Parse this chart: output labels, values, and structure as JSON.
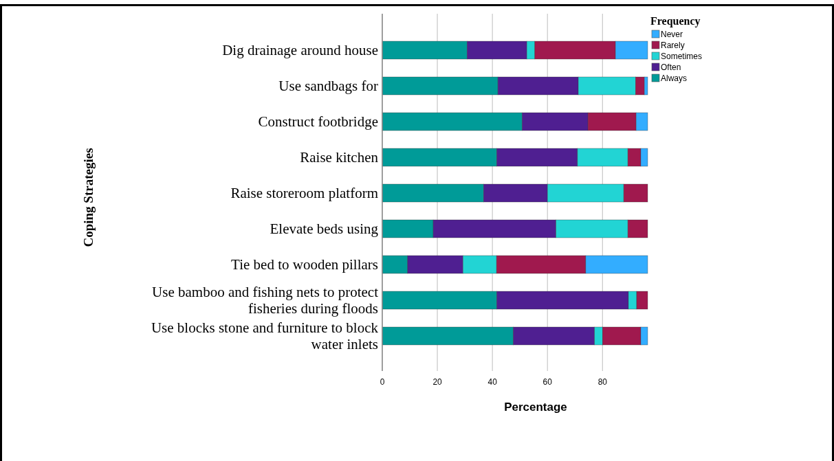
{
  "chart_data": {
    "type": "bar",
    "orientation": "horizontal",
    "stacked": true,
    "xlabel": "Percentage",
    "ylabel": "Coping Strategies",
    "legend_title": "Frequency",
    "categories": [
      "Dig drainage around house",
      "Use sandbags for",
      "Construct footbridge",
      "Raise kitchen",
      "Raise storeroom platform",
      "Elevate beds using",
      "Tie bed to wooden pillars",
      "Use bamboo and fishing nets to protect fisheries during floods",
      "Use blocks stone and furniture to block water inlets"
    ],
    "series": [
      {
        "name": "Always",
        "color": "#009b98",
        "values": [
          30.8,
          42.0,
          50.8,
          41.6,
          36.8,
          18.5,
          9.2,
          41.6,
          47.6
        ]
      },
      {
        "name": "Often",
        "color": "#4f1f91",
        "values": [
          21.7,
          29.2,
          23.9,
          29.3,
          23.2,
          44.6,
          20.1,
          47.8,
          29.5
        ]
      },
      {
        "name": "Sometimes",
        "color": "#22d4d4",
        "values": [
          2.9,
          20.8,
          0,
          18.3,
          27.7,
          26.1,
          12.2,
          3.0,
          2.9
        ]
      },
      {
        "name": "Rarely",
        "color": "#a0194e",
        "values": [
          29.3,
          3.2,
          17.5,
          4.7,
          8.7,
          7.2,
          32.4,
          4.0,
          13.9
        ]
      },
      {
        "name": "Never",
        "color": "#33adff",
        "values": [
          11.7,
          1.2,
          4.2,
          2.5,
          0,
          0,
          22.5,
          0,
          2.5
        ]
      }
    ],
    "xlim": [
      0,
      96.4
    ],
    "xticks": [
      0,
      20,
      40,
      60,
      80
    ],
    "grid": "x",
    "legend": "top right"
  }
}
